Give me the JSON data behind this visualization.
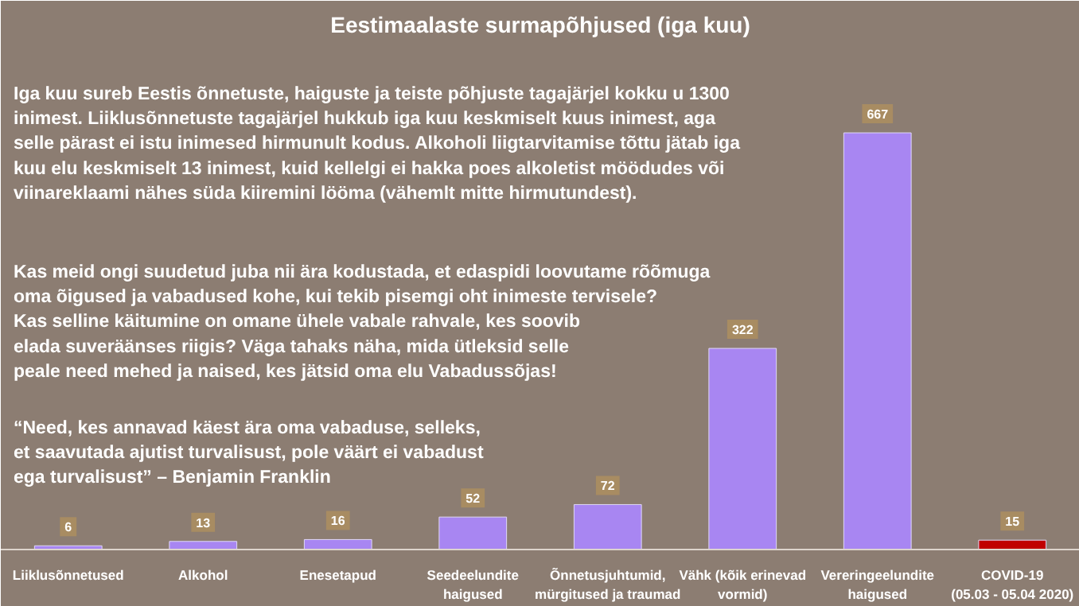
{
  "chart_data": {
    "type": "bar",
    "title": "Eestimaalaste surmapõhjused (iga kuu)",
    "categories": [
      "Liiklusõnnetused",
      "Alkohol",
      "Enesetapud",
      "Seedeelundite\nhaigused",
      "Õnnetusjuhtumid,\nmürgitused ja traumad",
      "Vähk (kõik erinevad\nvormid)",
      "Vereringeelundite\nhaigused",
      "COVID-19\n(05.03 - 05.04 2020)"
    ],
    "values": [
      6,
      13,
      16,
      52,
      72,
      322,
      667,
      15
    ],
    "colors": [
      "#a886f2",
      "#a886f2",
      "#a886f2",
      "#a886f2",
      "#a886f2",
      "#a886f2",
      "#a886f2",
      "#c00000"
    ],
    "tick_labels": "x",
    "data_labels": true,
    "grid": false,
    "annotations": [
      "Iga kuu sureb Eestis õnnetuste, haiguste ja teiste põhjuste tagajärjel kokku u 1300\ninimest. Liiklusõnnetuste tagajärjel hukkub iga kuu keskmiselt kuus inimest, aga\nselle pärast ei istu inimesed hirmunult kodus. Alkoholi liigtarvitamise tõttu jätab iga\nkuu elu keskmiselt 13 inimest, kuid kellelgi ei hakka poes alkoletist möödudes või\nviinareklaami nähes süda kiiremini lööma (vähemlt mitte hirmutundest).",
      "Kas meid ongi suudetud juba nii ära kodustada, et edaspidi loovutame rõõmuga\noma õigused ja vabadused kohe, kui tekib pisemgi oht inimeste tervisele?\nKas selline käitumine on omane ühele vabale rahvale, kes soovib\nelada suveräänses riigis? Väga tahaks näha, mida ütleksid selle\npeale need mehed ja naised, kes jätsid oma elu Vabadussõjas!",
      "“Need, kes annavad käest ära oma vabaduse, selleks,\net saavutada ajutist turvalisust, pole väärt ei vabadust\nega turvalisust” – Benjamin Franklin"
    ]
  }
}
